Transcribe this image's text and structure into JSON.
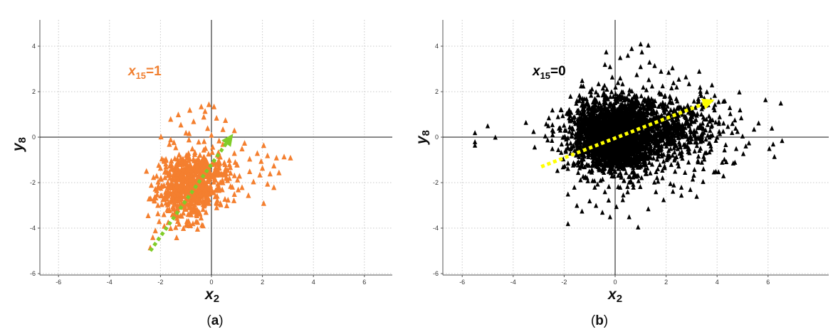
{
  "chart_data": [
    {
      "type": "scatter",
      "marker": "triangle",
      "caption": "a",
      "x_var": "x",
      "x_sub": "2",
      "y_var": "y",
      "y_sub": "8",
      "annotation": {
        "var": "x",
        "sub": "15",
        "rest": "=1",
        "color": "#f07f30"
      },
      "xlim": [
        -6.7,
        7.8
      ],
      "ylim": [
        -6.1,
        5.1
      ],
      "xticks": [
        -6,
        -4,
        -2,
        0,
        2,
        4,
        6
      ],
      "yticks": [
        -6,
        -4,
        -2,
        0,
        2,
        4
      ],
      "grid": true,
      "point_color": "#f47f2f",
      "arrow": {
        "from": [
          -2.4,
          -5.0
        ],
        "to": [
          0.85,
          0.15
        ],
        "color": "#80cc28"
      },
      "points": [
        [
          -0.85,
          1.2
        ],
        [
          -0.4,
          1.35
        ],
        [
          -0.1,
          1.45
        ],
        [
          0.1,
          1.35
        ],
        [
          -1.6,
          0.8
        ],
        [
          -1.2,
          0.55
        ],
        [
          -0.7,
          0.7
        ],
        [
          -0.3,
          0.9
        ],
        [
          0.2,
          0.85
        ],
        [
          0.55,
          0.75
        ],
        [
          -1.0,
          0.2
        ],
        [
          0.0,
          0.1
        ],
        [
          0.45,
          0.35
        ],
        [
          0.9,
          0.3
        ],
        [
          -0.5,
          -0.2
        ],
        [
          0.3,
          -0.15
        ],
        [
          1.2,
          -0.5
        ],
        [
          1.5,
          -0.95
        ],
        [
          1.8,
          -0.7
        ],
        [
          2.05,
          -0.35
        ],
        [
          2.2,
          -0.8
        ],
        [
          2.55,
          -0.9
        ],
        [
          2.85,
          -0.85
        ],
        [
          3.1,
          -0.9
        ],
        [
          2.45,
          -1.25
        ],
        [
          2.0,
          -1.35
        ],
        [
          2.3,
          -1.6
        ],
        [
          2.65,
          -1.55
        ],
        [
          1.5,
          -1.5
        ],
        [
          1.9,
          -1.65
        ],
        [
          1.65,
          -1.95
        ],
        [
          2.2,
          -2.05
        ],
        [
          2.45,
          -2.2
        ],
        [
          1.2,
          -2.2
        ],
        [
          0.9,
          -2.5
        ],
        [
          0.65,
          -2.75
        ],
        [
          0.6,
          -3.0
        ],
        [
          2.05,
          -2.9
        ],
        [
          1.95,
          -1.05
        ],
        [
          1.0,
          -1.2
        ],
        [
          1.1,
          -1.7
        ],
        [
          0.7,
          -1.0
        ],
        [
          0.25,
          -1.1
        ],
        [
          0.6,
          -1.8
        ],
        [
          0.75,
          -2.15
        ],
        [
          0.15,
          -2.6
        ],
        [
          -0.1,
          -2.9
        ],
        [
          -0.55,
          -3.2
        ],
        [
          -0.8,
          -3.4
        ],
        [
          -0.6,
          -3.7
        ],
        [
          -1.35,
          -3.55
        ],
        [
          -1.5,
          -3.15
        ],
        [
          -1.85,
          -3.9
        ],
        [
          -2.2,
          -4.1
        ],
        [
          -2.05,
          -3.7
        ],
        [
          -2.4,
          -4.85
        ],
        [
          -2.3,
          -4.4
        ],
        [
          -1.1,
          -4.0
        ],
        [
          -2.1,
          -2.2
        ],
        [
          -2.15,
          -1.7
        ],
        [
          -2.0,
          -1.35
        ],
        [
          -1.95,
          -2.55
        ],
        [
          -1.7,
          -2.9
        ],
        [
          -1.95,
          -2.95
        ],
        [
          -2.1,
          -3.35
        ],
        [
          -1.65,
          -0.3
        ],
        [
          -1.4,
          -0.45
        ],
        [
          -1.2,
          -0.9
        ],
        [
          -0.9,
          -0.7
        ],
        [
          -0.3,
          -0.55
        ],
        [
          0.9,
          -0.7
        ],
        [
          1.3,
          -0.25
        ],
        [
          0.45,
          -0.3
        ],
        [
          -0.15,
          0.4
        ],
        [
          1.05,
          -2.3
        ],
        [
          0.35,
          -2.9
        ],
        [
          1.45,
          -2.55
        ],
        [
          -1.6,
          -0.1
        ],
        [
          -0.25,
          1.15
        ],
        [
          -1.3,
          1.0
        ]
      ],
      "cluster": {
        "center": [
          -1.0,
          -2.15
        ],
        "spread": [
          0.55,
          0.75
        ],
        "count": 520,
        "seed": 11
      },
      "cluster2": {
        "center": [
          -0.3,
          -1.6
        ],
        "spread": [
          0.5,
          0.45
        ],
        "count": 180,
        "seed": 29
      }
    },
    {
      "type": "scatter",
      "marker": "triangle",
      "caption": "b",
      "x_var": "x",
      "x_sub": "2",
      "y_var": "y",
      "y_sub": "8",
      "annotation": {
        "var": "x",
        "sub": "15",
        "rest": "=0",
        "color": "#000000"
      },
      "xlim": [
        -6.7,
        7.8
      ],
      "ylim": [
        -6.1,
        5.1
      ],
      "xticks": [
        -6,
        -4,
        -2,
        0,
        2,
        4,
        6
      ],
      "yticks": [
        -6,
        -4,
        -2,
        0,
        2,
        4
      ],
      "grid": true,
      "point_color": "#000000",
      "arrow": {
        "from": [
          -2.9,
          -1.3
        ],
        "to": [
          3.9,
          1.65
        ],
        "color": "#ffff00"
      },
      "points": [
        [
          -5.5,
          0.2
        ],
        [
          -5.5,
          -0.2
        ],
        [
          -5.5,
          -0.35
        ],
        [
          -5.0,
          0.5
        ],
        [
          -4.7,
          0.0
        ],
        [
          -3.5,
          0.65
        ],
        [
          -3.2,
          0.25
        ],
        [
          -2.6,
          0.85
        ],
        [
          -2.2,
          0.4
        ],
        [
          -2.05,
          0.0
        ],
        [
          -2.1,
          -0.3
        ],
        [
          -1.75,
          -0.7
        ],
        [
          -1.45,
          -1.55
        ],
        [
          -1.85,
          -2.5
        ],
        [
          -1.6,
          -2.2
        ],
        [
          -1.5,
          -3.0
        ],
        [
          -1.85,
          -3.8
        ],
        [
          -1.3,
          -3.25
        ],
        [
          -1.0,
          -2.8
        ],
        [
          -0.75,
          -3.0
        ],
        [
          -0.5,
          -3.3
        ],
        [
          -0.2,
          -3.5
        ],
        [
          0.05,
          -3.05
        ],
        [
          0.3,
          -2.75
        ],
        [
          0.55,
          -3.5
        ],
        [
          0.9,
          -3.95
        ],
        [
          1.3,
          -3.15
        ],
        [
          1.6,
          -2.4
        ],
        [
          1.9,
          -2.75
        ],
        [
          2.3,
          -2.1
        ],
        [
          2.6,
          -2.2
        ],
        [
          2.95,
          -2.3
        ],
        [
          3.2,
          -2.6
        ],
        [
          2.6,
          -2.55
        ],
        [
          3.45,
          -1.95
        ],
        [
          3.95,
          -1.5
        ],
        [
          4.25,
          -1.7
        ],
        [
          4.7,
          -1.1
        ],
        [
          4.75,
          -0.5
        ],
        [
          5.0,
          0.05
        ],
        [
          5.25,
          -0.25
        ],
        [
          5.45,
          0.35
        ],
        [
          5.9,
          1.65
        ],
        [
          6.5,
          1.5
        ],
        [
          6.15,
          0.4
        ],
        [
          6.2,
          -0.3
        ],
        [
          6.55,
          -0.15
        ],
        [
          6.25,
          -0.85
        ],
        [
          6.05,
          -0.5
        ],
        [
          4.6,
          0.6
        ],
        [
          4.9,
          1.2
        ],
        [
          4.3,
          1.6
        ],
        [
          3.6,
          2.0
        ],
        [
          3.8,
          2.3
        ],
        [
          3.3,
          2.9
        ],
        [
          2.9,
          2.35
        ],
        [
          2.5,
          2.55
        ],
        [
          2.1,
          2.85
        ],
        [
          1.8,
          2.9
        ],
        [
          1.35,
          3.3
        ],
        [
          1.05,
          3.75
        ],
        [
          0.65,
          3.9
        ],
        [
          0.5,
          3.6
        ],
        [
          1.0,
          3.1
        ],
        [
          -0.35,
          3.75
        ],
        [
          -0.4,
          3.2
        ],
        [
          -0.2,
          3.1
        ],
        [
          0.2,
          2.6
        ],
        [
          0.85,
          2.75
        ],
        [
          1.3,
          4.05
        ],
        [
          1.0,
          4.1
        ],
        [
          0.2,
          3.5
        ],
        [
          1.55,
          3.15
        ],
        [
          2.25,
          3.05
        ],
        [
          -0.65,
          2.35
        ],
        [
          -0.95,
          2.0
        ],
        [
          -1.25,
          2.25
        ],
        [
          -1.5,
          1.6
        ],
        [
          -1.9,
          1.05
        ],
        [
          -1.7,
          0.75
        ],
        [
          -1.2,
          1.4
        ],
        [
          3.0,
          1.1
        ],
        [
          3.5,
          0.8
        ],
        [
          4.1,
          0.9
        ],
        [
          4.5,
          1.3
        ],
        [
          3.9,
          1.2
        ],
        [
          3.4,
          1.45
        ],
        [
          2.4,
          1.7
        ],
        [
          2.7,
          1.3
        ],
        [
          3.1,
          0.3
        ],
        [
          2.9,
          -0.5
        ],
        [
          3.4,
          -1.1
        ],
        [
          2.2,
          -1.2
        ],
        [
          1.2,
          -1.6
        ],
        [
          0.7,
          -1.75
        ],
        [
          0.2,
          -2.2
        ],
        [
          -0.4,
          -2.4
        ],
        [
          -0.8,
          -2.2
        ],
        [
          -1.2,
          -1.3
        ],
        [
          -1.0,
          0.9
        ],
        [
          -1.35,
          0.6
        ],
        [
          -1.55,
          0.15
        ],
        [
          4.8,
          0.25
        ],
        [
          4.0,
          0.0
        ],
        [
          3.7,
          -0.65
        ],
        [
          4.2,
          -1.1
        ]
      ],
      "cluster": {
        "center": [
          0.0,
          0.1
        ],
        "spread": [
          0.85,
          0.8
        ],
        "count": 2300,
        "seed": 5
      },
      "cluster2": {
        "center": [
          2.0,
          0.4
        ],
        "spread": [
          1.1,
          0.75
        ],
        "count": 650,
        "seed": 17
      }
    }
  ]
}
